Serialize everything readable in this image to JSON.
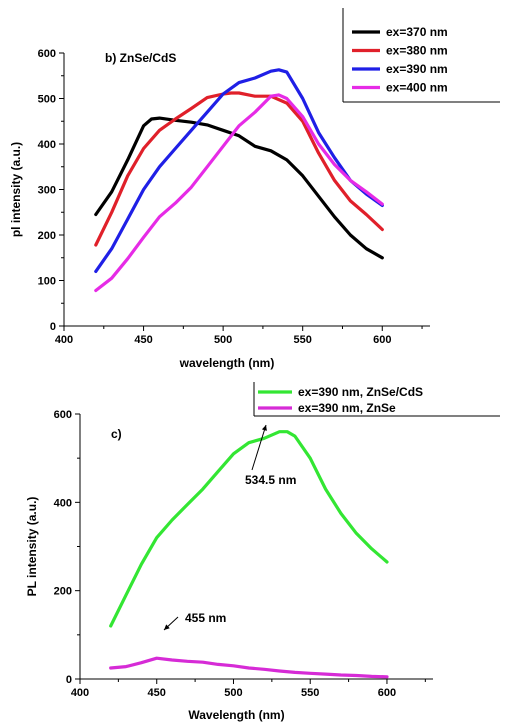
{
  "chart_data": [
    {
      "type": "line",
      "panel_label": "b) ZnSe/CdS",
      "xlabel": "wavelength (nm)",
      "ylabel": "pl intensity (a.u.)",
      "xlim": [
        400,
        630
      ],
      "ylim": [
        0,
        600
      ],
      "xticks": [
        400,
        450,
        500,
        550,
        600
      ],
      "yticks": [
        0,
        100,
        200,
        300,
        400,
        500,
        600
      ],
      "legend_position": "top-right",
      "series": [
        {
          "name": "ex=370 nm",
          "color": "#000000",
          "points": [
            [
              420,
              245
            ],
            [
              430,
              295
            ],
            [
              440,
              365
            ],
            [
              450,
              440
            ],
            [
              455,
              455
            ],
            [
              460,
              457
            ],
            [
              470,
              452
            ],
            [
              480,
              448
            ],
            [
              490,
              442
            ],
            [
              500,
              430
            ],
            [
              510,
              418
            ],
            [
              520,
              395
            ],
            [
              530,
              385
            ],
            [
              540,
              365
            ],
            [
              550,
              330
            ],
            [
              560,
              285
            ],
            [
              570,
              240
            ],
            [
              580,
              200
            ],
            [
              590,
              170
            ],
            [
              600,
              150
            ]
          ]
        },
        {
          "name": "ex=380 nm",
          "color": "#e0202a",
          "points": [
            [
              420,
              178
            ],
            [
              430,
              250
            ],
            [
              440,
              330
            ],
            [
              450,
              390
            ],
            [
              460,
              430
            ],
            [
              470,
              455
            ],
            [
              480,
              478
            ],
            [
              490,
              502
            ],
            [
              500,
              510
            ],
            [
              505,
              512
            ],
            [
              510,
              512
            ],
            [
              520,
              505
            ],
            [
              530,
              505
            ],
            [
              540,
              490
            ],
            [
              550,
              450
            ],
            [
              560,
              380
            ],
            [
              570,
              320
            ],
            [
              580,
              275
            ],
            [
              590,
              245
            ],
            [
              600,
              212
            ]
          ]
        },
        {
          "name": "ex=390 nm",
          "color": "#1f1fe6",
          "points": [
            [
              420,
              120
            ],
            [
              430,
              170
            ],
            [
              440,
              235
            ],
            [
              450,
              300
            ],
            [
              460,
              350
            ],
            [
              470,
              390
            ],
            [
              480,
              430
            ],
            [
              490,
              470
            ],
            [
              500,
              510
            ],
            [
              510,
              535
            ],
            [
              520,
              545
            ],
            [
              530,
              560
            ],
            [
              535,
              563
            ],
            [
              540,
              558
            ],
            [
              550,
              500
            ],
            [
              560,
              425
            ],
            [
              570,
              370
            ],
            [
              580,
              320
            ],
            [
              590,
              290
            ],
            [
              600,
              265
            ]
          ]
        },
        {
          "name": "ex=400 nm",
          "color": "#e62be6",
          "points": [
            [
              420,
              78
            ],
            [
              430,
              105
            ],
            [
              440,
              148
            ],
            [
              450,
              195
            ],
            [
              460,
              240
            ],
            [
              470,
              270
            ],
            [
              480,
              305
            ],
            [
              490,
              350
            ],
            [
              500,
              395
            ],
            [
              510,
              440
            ],
            [
              520,
              470
            ],
            [
              530,
              505
            ],
            [
              535,
              508
            ],
            [
              540,
              500
            ],
            [
              550,
              460
            ],
            [
              560,
              400
            ],
            [
              570,
              355
            ],
            [
              580,
              320
            ],
            [
              590,
              295
            ],
            [
              600,
              268
            ]
          ]
        }
      ]
    },
    {
      "type": "line",
      "panel_label": "c)",
      "xlabel": "Wavelength (nm)",
      "ylabel": "PL intensity (a.u.)",
      "xlim": [
        400,
        630
      ],
      "ylim": [
        0,
        600
      ],
      "xticks": [
        400,
        450,
        500,
        550,
        600
      ],
      "yticks": [
        0,
        200,
        400,
        600
      ],
      "legend_position": "top-right",
      "annotations": [
        {
          "text": "534.5 nm",
          "x": 534.5,
          "y": 560
        },
        {
          "text": "455 nm",
          "x": 450,
          "y": 47
        }
      ],
      "series": [
        {
          "name": "ex=390 nm, ZnSe/CdS",
          "color": "#33e633",
          "points": [
            [
              420,
              120
            ],
            [
              430,
              190
            ],
            [
              440,
              260
            ],
            [
              450,
              320
            ],
            [
              460,
              360
            ],
            [
              470,
              395
            ],
            [
              480,
              430
            ],
            [
              490,
              470
            ],
            [
              500,
              510
            ],
            [
              510,
              535
            ],
            [
              520,
              545
            ],
            [
              530,
              560
            ],
            [
              535,
              560
            ],
            [
              540,
              550
            ],
            [
              550,
              500
            ],
            [
              560,
              430
            ],
            [
              570,
              375
            ],
            [
              580,
              330
            ],
            [
              590,
              295
            ],
            [
              600,
              265
            ]
          ]
        },
        {
          "name": "ex=390 nm, ZnSe",
          "color": "#d62bd6",
          "points": [
            [
              420,
              25
            ],
            [
              430,
              28
            ],
            [
              440,
              37
            ],
            [
              450,
              47
            ],
            [
              460,
              43
            ],
            [
              470,
              40
            ],
            [
              480,
              38
            ],
            [
              490,
              33
            ],
            [
              500,
              30
            ],
            [
              510,
              25
            ],
            [
              520,
              22
            ],
            [
              530,
              18
            ],
            [
              540,
              15
            ],
            [
              550,
              13
            ],
            [
              560,
              11
            ],
            [
              570,
              9
            ],
            [
              580,
              8
            ],
            [
              590,
              6
            ],
            [
              600,
              5
            ]
          ]
        }
      ]
    }
  ]
}
